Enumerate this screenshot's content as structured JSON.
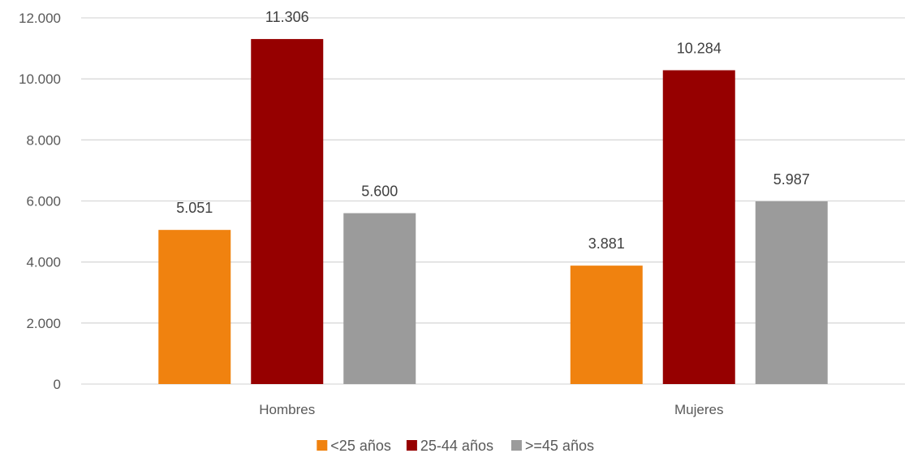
{
  "chart_data": {
    "type": "bar",
    "categories": [
      "Hombres",
      "Mujeres"
    ],
    "series": [
      {
        "name": "<25 años",
        "values": [
          5051,
          3881
        ],
        "labels": [
          "5.051",
          "3.881"
        ],
        "color": "#F0820F"
      },
      {
        "name": "25-44 años",
        "values": [
          11306,
          10284
        ],
        "labels": [
          "11.306",
          "10.284"
        ],
        "color": "#960000"
      },
      {
        "name": ">=45 años",
        "values": [
          5600,
          5987
        ],
        "labels": [
          "5.600",
          "5.987"
        ],
        "color": "#9B9B9B"
      }
    ],
    "ylim": [
      0,
      12000
    ],
    "yticks": [
      0,
      2000,
      4000,
      6000,
      8000,
      10000,
      12000
    ],
    "ytick_labels": [
      "0",
      "2.000",
      "4.000",
      "6.000",
      "8.000",
      "10.000",
      "12.000"
    ],
    "grid": true,
    "gridline_color": "#D9D9D9",
    "legend_position": "bottom",
    "title": "",
    "xlabel": "",
    "ylabel": ""
  }
}
